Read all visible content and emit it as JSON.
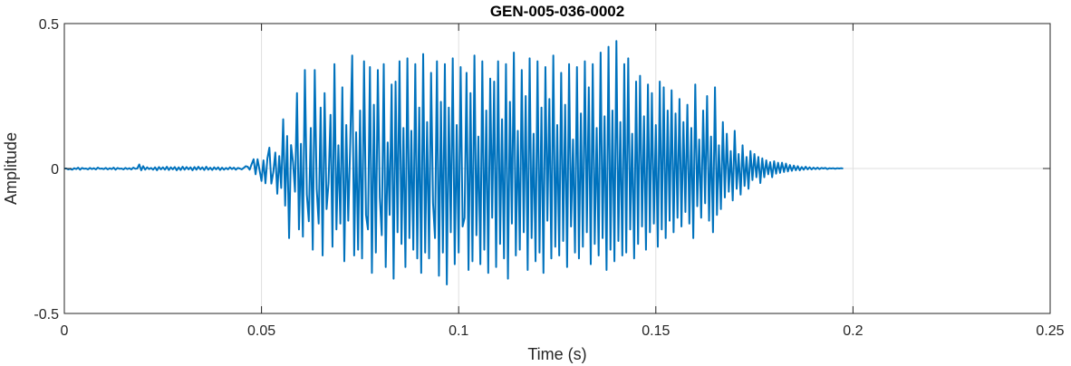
{
  "chart_data": {
    "type": "line",
    "title": "GEN-005-036-0002",
    "xlabel": "Time (s)",
    "ylabel": "Amplitude",
    "xlim": [
      0,
      0.25
    ],
    "ylim": [
      -0.5,
      0.5
    ],
    "grid": true,
    "legend": "none",
    "x_ticks": [
      {
        "value": 0,
        "label": "0"
      },
      {
        "value": 0.05,
        "label": "0.05"
      },
      {
        "value": 0.1,
        "label": "0.1"
      },
      {
        "value": 0.15,
        "label": "0.15"
      },
      {
        "value": 0.2,
        "label": "0.2"
      },
      {
        "value": 0.25,
        "label": "0.25"
      }
    ],
    "y_ticks": [
      {
        "value": -0.5,
        "label": "-0.5"
      },
      {
        "value": 0,
        "label": "0"
      },
      {
        "value": 0.5,
        "label": "0.5"
      }
    ],
    "colors": {
      "line": "#0072BD",
      "grid": "#dfdfdf",
      "axes": "#262626"
    },
    "series": [
      {
        "sample_interval": 0.0005,
        "y": [
          0.0,
          0.0,
          -0.003,
          -0.001,
          -0.004,
          0.001,
          -0.002,
          0.003,
          -0.004,
          0.002,
          -0.001,
          0.0,
          -0.003,
          0.002,
          -0.002,
          0.001,
          -0.003,
          0.003,
          -0.001,
          0.0,
          -0.002,
          0.002,
          -0.003,
          0.001,
          -0.002,
          0.003,
          -0.004,
          0.002,
          -0.001,
          0.0,
          -0.003,
          0.002,
          -0.002,
          0.001,
          -0.003,
          0.003,
          -0.001,
          0.0,
          0.014,
          -0.006,
          0.008,
          -0.004,
          0.004,
          -0.002,
          0.002,
          -0.004,
          0.004,
          -0.006,
          0.005,
          -0.003,
          0.004,
          -0.004,
          0.006,
          -0.005,
          0.004,
          -0.003,
          0.005,
          -0.006,
          0.004,
          -0.005,
          0.006,
          -0.004,
          0.005,
          -0.003,
          0.004,
          -0.006,
          0.005,
          -0.004,
          0.006,
          -0.003,
          0.004,
          -0.005,
          0.006,
          -0.004,
          0.003,
          -0.005,
          0.004,
          -0.003,
          0.004,
          -0.005,
          0.003,
          -0.004,
          0.002,
          -0.003,
          0.004,
          -0.002,
          0.003,
          -0.004,
          0.002,
          0.0,
          -0.003,
          0.002,
          0.008,
          0.006,
          -0.004,
          0.015,
          0.032,
          -0.02,
          0.032,
          -0.005,
          -0.043,
          0.028,
          -0.051,
          0.035,
          0.072,
          -0.052,
          -0.012,
          0.055,
          -0.087,
          0.043,
          -0.067,
          0.17,
          -0.128,
          0.112,
          -0.24,
          0.081,
          0.021,
          -0.08,
          0.26,
          -0.21,
          0.085,
          -0.235,
          0.34,
          -0.09,
          -0.182,
          0.14,
          -0.28,
          0.34,
          -0.07,
          -0.19,
          0.21,
          -0.3,
          0.26,
          -0.14,
          -0.05,
          0.185,
          -0.27,
          0.36,
          -0.21,
          0.08,
          -0.19,
          0.28,
          -0.32,
          0.15,
          -0.18,
          0.085,
          0.39,
          -0.3,
          0.125,
          -0.28,
          0.2,
          -0.31,
          0.37,
          -0.16,
          -0.21,
          0.35,
          -0.36,
          0.22,
          -0.29,
          0.34,
          -0.1,
          -0.23,
          0.36,
          -0.34,
          0.09,
          -0.16,
          0.29,
          -0.38,
          0.3,
          -0.22,
          0.37,
          -0.26,
          0.14,
          -0.34,
          0.38,
          -0.24,
          0.13,
          -0.28,
          0.36,
          -0.31,
          0.21,
          -0.36,
          0.395,
          -0.29,
          0.16,
          -0.31,
          0.33,
          -0.12,
          -0.24,
          0.37,
          -0.37,
          0.23,
          -0.29,
          0.36,
          -0.4,
          0.21,
          -0.22,
          0.38,
          -0.33,
          0.15,
          -0.29,
          0.35,
          -0.2,
          -0.17,
          0.33,
          -0.35,
          0.26,
          -0.32,
          0.39,
          -0.23,
          0.11,
          -0.33,
          0.37,
          -0.28,
          0.2,
          -0.36,
          0.31,
          -0.17,
          0.3,
          -0.34,
          0.37,
          -0.26,
          0.17,
          -0.31,
          0.36,
          -0.38,
          0.23,
          -0.19,
          0.4,
          -0.3,
          0.13,
          -0.28,
          0.34,
          -0.22,
          0.25,
          -0.35,
          0.38,
          -0.24,
          0.12,
          -0.32,
          0.37,
          -0.29,
          0.21,
          -0.36,
          0.35,
          -0.18,
          0.24,
          -0.31,
          0.39,
          -0.27,
          0.15,
          -0.3,
          0.33,
          -0.25,
          0.22,
          -0.34,
          0.36,
          -0.2,
          0.1,
          -0.29,
          0.35,
          -0.31,
          0.19,
          -0.27,
          0.37,
          -0.22,
          0.28,
          -0.33,
          0.36,
          -0.26,
          0.14,
          -0.3,
          0.4,
          -0.24,
          0.18,
          -0.35,
          0.42,
          -0.28,
          0.2,
          -0.32,
          0.44,
          -0.25,
          0.16,
          -0.3,
          0.36,
          -0.29,
          0.38,
          -0.21,
          0.12,
          -0.31,
          0.3,
          -0.26,
          0.32,
          -0.2,
          0.18,
          -0.28,
          0.29,
          -0.22,
          0.26,
          -0.19,
          0.15,
          -0.27,
          0.3,
          -0.21,
          0.28,
          -0.24,
          0.2,
          -0.18,
          0.27,
          -0.22,
          0.19,
          -0.17,
          0.24,
          -0.2,
          0.16,
          -0.15,
          0.22,
          -0.19,
          0.14,
          -0.24,
          0.29,
          -0.13,
          0.1,
          -0.17,
          0.2,
          -0.12,
          0.25,
          -0.18,
          0.11,
          -0.22,
          0.28,
          -0.16,
          0.08,
          -0.14,
          0.16,
          -0.1,
          0.12,
          -0.08,
          0.06,
          -0.11,
          0.13,
          -0.07,
          0.05,
          -0.09,
          0.08,
          -0.06,
          0.04,
          -0.07,
          0.06,
          -0.04,
          0.05,
          -0.03,
          0.04,
          -0.05,
          0.035,
          -0.03,
          0.028,
          -0.02,
          0.022,
          -0.03,
          0.025,
          -0.018,
          0.02,
          -0.015,
          0.02,
          -0.012,
          0.017,
          -0.01,
          0.012,
          -0.008,
          0.01,
          -0.006,
          0.008,
          -0.006,
          0.005,
          -0.004,
          0.006,
          -0.003,
          0.004,
          -0.003,
          0.003,
          -0.002,
          0.003,
          -0.002,
          0.002,
          0.0,
          0.002,
          -0.002,
          0.001,
          0.0,
          0.001,
          -0.001,
          0.001,
          0.0,
          0.001,
          0.0
        ]
      }
    ]
  }
}
